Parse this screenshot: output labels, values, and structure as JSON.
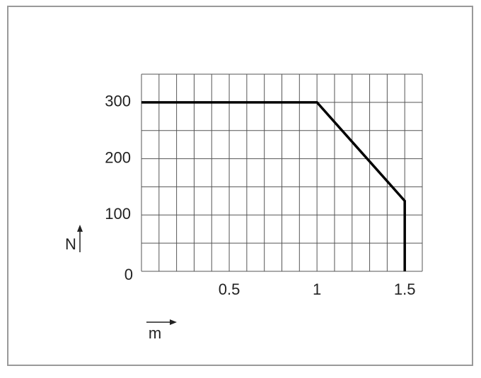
{
  "chart_data": {
    "type": "line",
    "x_label": "m",
    "y_label": "N",
    "x": [
      0,
      1,
      1.5,
      1.5
    ],
    "series": [
      {
        "color": "#000000",
        "values": [
          300,
          300,
          125,
          0
        ]
      }
    ],
    "xlim": [
      0,
      1.6
    ],
    "ylim": [
      0,
      350
    ],
    "xticks": [
      0.5,
      1,
      1.5
    ],
    "yticks": [
      0,
      100,
      200,
      300
    ],
    "xgrid": [
      0,
      0.1,
      0.2,
      0.3,
      0.4,
      0.5,
      0.6,
      0.7,
      0.8,
      0.9,
      1,
      1.1,
      1.2,
      1.3,
      1.4,
      1.5,
      1.6
    ],
    "ygrid": [
      0,
      50,
      100,
      150,
      200,
      250,
      300,
      350
    ],
    "grid": true
  }
}
